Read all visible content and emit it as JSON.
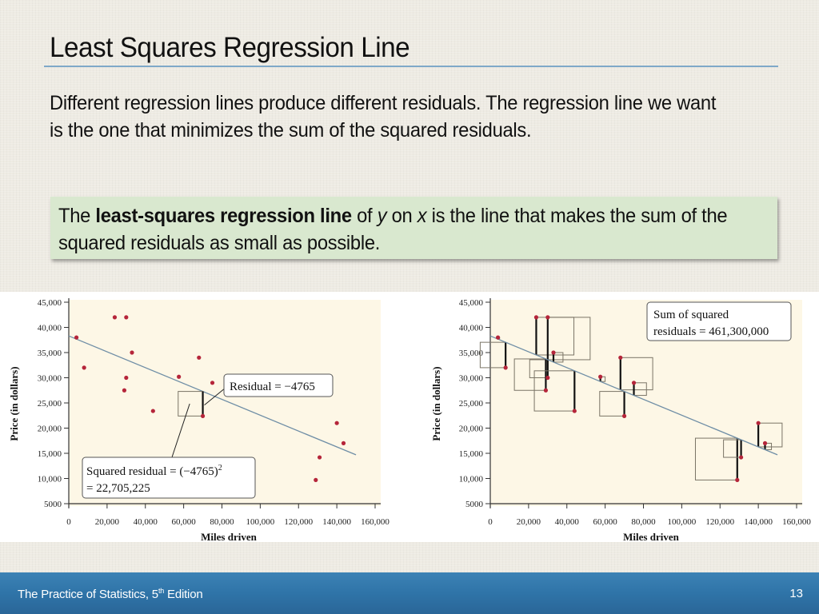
{
  "slide": {
    "title": "Least Squares Regression Line",
    "body": "Different regression lines produce different residuals.  The regression line we want is the one that minimizes the sum of the squared residuals.",
    "definition": {
      "prefix": "The ",
      "term": "least-squares regression line",
      "of": " of ",
      "y": "y",
      "on": " on ",
      "x": "x",
      "suffix": " is the line that makes the sum of the squared residuals as small as possible."
    },
    "accent_colors": {
      "title_rule": "#7fa9c9",
      "definition_box": "#d9e8cf",
      "footer": "#2f74a8",
      "point": "#b5253a",
      "regression_line": "#6f8ea6",
      "plot_background": "#fdf7e6"
    }
  },
  "footer": {
    "book_title": "The Practice of Statistics, 5",
    "edition_sup": "th",
    "edition_word": " Edition",
    "page_number": "13"
  },
  "chart_data": [
    {
      "type": "scatter",
      "title": "",
      "xlabel": "Miles driven",
      "ylabel": "Price (in dollars)",
      "xlim": [
        0,
        160000
      ],
      "ylim": [
        5000,
        45000
      ],
      "x_ticks": [
        "0",
        "20,000",
        "40,000",
        "60,000",
        "80,000",
        "100,000",
        "120,000",
        "140,000",
        "160,000"
      ],
      "y_ticks": [
        "5000",
        "10,000",
        "15,000",
        "20,000",
        "25,000",
        "30,000",
        "35,000",
        "40,000",
        "45,000"
      ],
      "grid": false,
      "points": [
        {
          "x": 4000,
          "y": 38000
        },
        {
          "x": 8000,
          "y": 32000
        },
        {
          "x": 24000,
          "y": 42000
        },
        {
          "x": 30000,
          "y": 42000
        },
        {
          "x": 33000,
          "y": 35000
        },
        {
          "x": 30000,
          "y": 30000
        },
        {
          "x": 29000,
          "y": 27500
        },
        {
          "x": 44000,
          "y": 23400
        },
        {
          "x": 57500,
          "y": 30200
        },
        {
          "x": 68000,
          "y": 34000
        },
        {
          "x": 70000,
          "y": 22400
        },
        {
          "x": 75000,
          "y": 29000
        },
        {
          "x": 129000,
          "y": 9700
        },
        {
          "x": 131000,
          "y": 14200
        },
        {
          "x": 140000,
          "y": 21000
        },
        {
          "x": 143500,
          "y": 17000
        }
      ],
      "regression_line": {
        "x0": 0,
        "y0": 38300,
        "x1": 150000,
        "y1": 14700
      },
      "highlighted_point": {
        "x": 70000,
        "y": 22400
      },
      "annotations": [
        {
          "text": "Residual = −4765"
        },
        {
          "text_line1": "Squared residual = (−4765)",
          "superscript": "2",
          "text_line2": "= 22,705,225"
        }
      ]
    },
    {
      "type": "scatter",
      "title": "",
      "xlabel": "Miles driven",
      "ylabel": "Price (in dollars)",
      "xlim": [
        0,
        160000
      ],
      "ylim": [
        5000,
        45000
      ],
      "x_ticks": [
        "0",
        "20,000",
        "40,000",
        "60,000",
        "80,000",
        "100,000",
        "120,000",
        "140,000",
        "160,000"
      ],
      "y_ticks": [
        "5000",
        "10,000",
        "15,000",
        "20,000",
        "25,000",
        "30,000",
        "35,000",
        "40,000",
        "45,000"
      ],
      "grid": false,
      "points": [
        {
          "x": 4000,
          "y": 38000
        },
        {
          "x": 8000,
          "y": 32000
        },
        {
          "x": 24000,
          "y": 42000
        },
        {
          "x": 30000,
          "y": 42000
        },
        {
          "x": 33000,
          "y": 35000
        },
        {
          "x": 30000,
          "y": 30000
        },
        {
          "x": 29000,
          "y": 27500
        },
        {
          "x": 44000,
          "y": 23400
        },
        {
          "x": 57500,
          "y": 30200
        },
        {
          "x": 68000,
          "y": 34000
        },
        {
          "x": 70000,
          "y": 22400
        },
        {
          "x": 75000,
          "y": 29000
        },
        {
          "x": 129000,
          "y": 9700
        },
        {
          "x": 131000,
          "y": 14200
        },
        {
          "x": 140000,
          "y": 21000
        },
        {
          "x": 143500,
          "y": 17000
        }
      ],
      "regression_line": {
        "x0": 0,
        "y0": 38300,
        "x1": 150000,
        "y1": 14700
      },
      "residual_squares": true,
      "annotations": [
        {
          "text_line1": "Sum of squared",
          "text_line2": "residuals = 461,300,000"
        }
      ]
    }
  ]
}
